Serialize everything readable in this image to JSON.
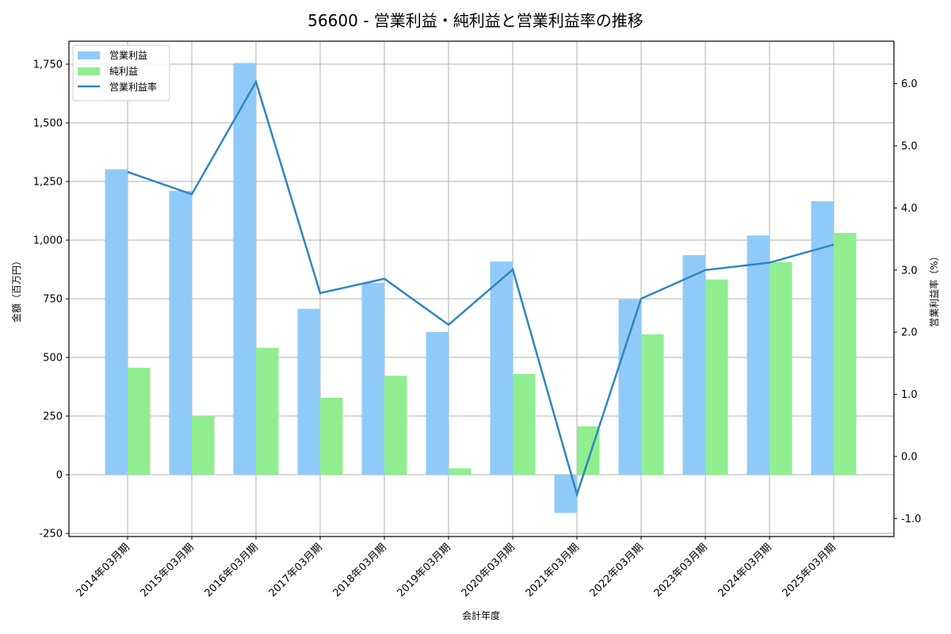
{
  "title": "56600 - 営業利益・純利益と営業利益率の推移",
  "chart_data": {
    "type": "bar",
    "title": "56600 - 営業利益・純利益と営業利益率の推移",
    "xlabel": "会計年度",
    "ylabel": "金額（百万円）",
    "y2label": "営業利益率（%）",
    "categories": [
      "2014年03月期",
      "2015年03月期",
      "2016年03月期",
      "2017年03月期",
      "2018年03月期",
      "2019年03月期",
      "2020年03月期",
      "2021年03月期",
      "2022年03月期",
      "2023年03月期",
      "2024年03月期",
      "2025年03月期"
    ],
    "series": [
      {
        "name": "営業利益",
        "type": "bar",
        "axis": "left",
        "color": "#90CAF9",
        "values": [
          1302,
          1210,
          1755,
          707,
          818,
          608,
          909,
          -163,
          747,
          936,
          1020,
          1166
        ]
      },
      {
        "name": "純利益",
        "type": "bar",
        "axis": "left",
        "color": "#90EE90",
        "values": [
          456,
          250,
          541,
          328,
          422,
          27,
          429,
          206,
          598,
          832,
          906,
          1031
        ]
      },
      {
        "name": "営業利益率",
        "type": "line",
        "axis": "right",
        "color": "#2E86C1",
        "values": [
          4.58,
          4.22,
          6.03,
          2.63,
          2.86,
          2.12,
          3.01,
          -0.61,
          2.54,
          3.0,
          3.12,
          3.41
        ]
      }
    ],
    "ylim": [
      -260,
      1850
    ],
    "y2lim": [
      -1.3,
      6.7
    ],
    "yticks": [
      -250,
      0,
      250,
      500,
      750,
      1000,
      1250,
      1500,
      1750
    ],
    "ytick_labels": [
      "-250",
      "0",
      "250",
      "500",
      "750",
      "1,000",
      "1,250",
      "1,500",
      "1,750"
    ],
    "y2ticks": [
      -1.0,
      0.0,
      1.0,
      2.0,
      3.0,
      4.0,
      5.0,
      6.0
    ],
    "y2tick_labels": [
      "-1.0",
      "0.0",
      "1.0",
      "2.0",
      "3.0",
      "4.0",
      "5.0",
      "6.0"
    ],
    "grid": true,
    "legend_position": "upper left"
  }
}
